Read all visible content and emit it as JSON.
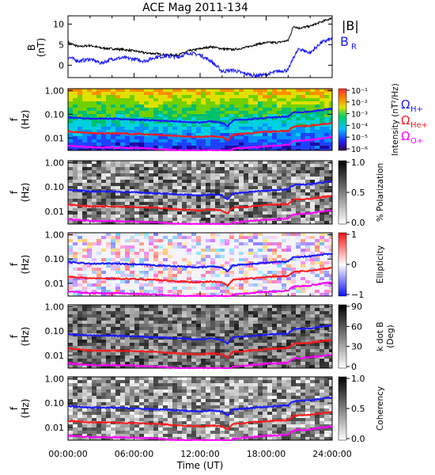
{
  "title": "ACE Mag 2011-134",
  "time_axis": {
    "label": "Time (UT)",
    "ticks": [
      "00:00:00",
      "06:00:00",
      "12:00:00",
      "18:00:00",
      "24:00:00"
    ],
    "hours": [
      0,
      6,
      12,
      18,
      24
    ]
  },
  "legend_top": {
    "b_mag": "|B|",
    "b_r": "B",
    "b_r_sub": "R"
  },
  "legend_side": [
    {
      "symbol": "Ω",
      "sub": "H+",
      "color": "#1a1aff"
    },
    {
      "symbol": "Ω",
      "sub": "He+",
      "color": "#ff1a1a"
    },
    {
      "symbol": "Ω",
      "sub": "O+",
      "color": "#ff00ff"
    }
  ],
  "freq_axis": {
    "label_top": "f",
    "label_bottom": "(Hz)",
    "ticks": [
      "1.00",
      "0.10",
      "0.01"
    ]
  },
  "colors": {
    "b_mag": "#000000",
    "b_r": "#1a1aff",
    "h_plus": "#1a1aff",
    "he_plus": "#ff1a1a",
    "o_plus": "#ff00ff"
  },
  "chart_data": [
    {
      "type": "line",
      "panel": "B field",
      "ylabel": "B",
      "yunit": "(nT)",
      "ylim": [
        -3,
        12
      ],
      "yticks": [
        "10",
        "5",
        "0"
      ],
      "x_hours": [
        0,
        1,
        2,
        3,
        4,
        5,
        6,
        7,
        8,
        9,
        10,
        11,
        12,
        13,
        14,
        15,
        16,
        17,
        18,
        19,
        20,
        20.5,
        21,
        22,
        23,
        24
      ],
      "series": [
        {
          "name": "|B|",
          "values": [
            5.5,
            4.5,
            4.8,
            4.2,
            4.0,
            3.8,
            3.5,
            3.0,
            2.8,
            2.5,
            2.5,
            3.5,
            4.0,
            4.5,
            4.0,
            3.8,
            4.2,
            5.0,
            5.5,
            5.5,
            6.0,
            9.5,
            9.0,
            9.5,
            10.5,
            11.5
          ]
        },
        {
          "name": "BR",
          "values": [
            2.0,
            1.0,
            1.5,
            0.5,
            1.5,
            1.8,
            1.5,
            1.0,
            2.0,
            2.2,
            2.0,
            3.0,
            2.5,
            1.0,
            -1.5,
            -1.2,
            -2.0,
            -2.5,
            -2.3,
            -1.5,
            -1.2,
            2.0,
            4.0,
            3.0,
            5.5,
            6.5
          ]
        }
      ]
    },
    {
      "type": "heatmap",
      "panel": "Intensity",
      "colorbar_label": "Intensity (nT²/Hz)",
      "colorbar_ticks": [
        "10⁻¹",
        "10⁻²",
        "10⁻³",
        "10⁻⁴",
        "10⁻⁵",
        "10⁻⁶"
      ],
      "zlim_log10": [
        -6,
        -1
      ]
    },
    {
      "type": "heatmap",
      "panel": "Polarization",
      "colorbar_label": "% Polarization",
      "colorbar_ticks": [
        "1.0",
        "0.5",
        "0.0"
      ],
      "zlim": [
        0,
        1
      ]
    },
    {
      "type": "heatmap",
      "panel": "Ellipticity",
      "colorbar_label": "Ellipticity",
      "colorbar_ticks": [
        "1",
        "0",
        "−1"
      ],
      "zlim": [
        -1,
        1
      ]
    },
    {
      "type": "heatmap",
      "panel": "k dot B",
      "colorbar_label_top": "k dot B",
      "colorbar_label_bottom": "(Deg)",
      "colorbar_ticks": [
        "90",
        "60",
        "30",
        "0"
      ],
      "zlim": [
        0,
        90
      ]
    },
    {
      "type": "heatmap",
      "panel": "Coherency",
      "colorbar_label": "Coherency",
      "colorbar_ticks": [
        "1.0",
        "0.5",
        "0.0"
      ],
      "zlim": [
        0,
        1
      ]
    },
    {
      "type": "line",
      "panel": "gyrofrequency overlays (all spectrogram panels)",
      "ylim_hz": [
        0.003,
        1.2
      ],
      "yscale": "log",
      "x_hours": [
        0,
        2,
        4,
        6,
        8,
        10,
        12,
        13,
        14,
        14.5,
        15,
        16,
        18,
        20,
        20.5,
        22,
        24
      ],
      "series": [
        {
          "name": "H+",
          "values": [
            0.075,
            0.065,
            0.065,
            0.06,
            0.055,
            0.05,
            0.045,
            0.05,
            0.045,
            0.03,
            0.055,
            0.06,
            0.07,
            0.08,
            0.12,
            0.13,
            0.17
          ]
        },
        {
          "name": "He+",
          "values": [
            0.019,
            0.016,
            0.016,
            0.015,
            0.014,
            0.012,
            0.011,
            0.012,
            0.011,
            0.008,
            0.014,
            0.015,
            0.018,
            0.02,
            0.03,
            0.033,
            0.043
          ]
        },
        {
          "name": "O+",
          "values": [
            0.0047,
            0.004,
            0.004,
            0.0038,
            0.0035,
            0.003,
            0.003,
            0.003,
            0.003,
            0.002,
            0.0035,
            0.0038,
            0.0045,
            0.005,
            0.0075,
            0.0083,
            0.011
          ]
        }
      ]
    }
  ]
}
